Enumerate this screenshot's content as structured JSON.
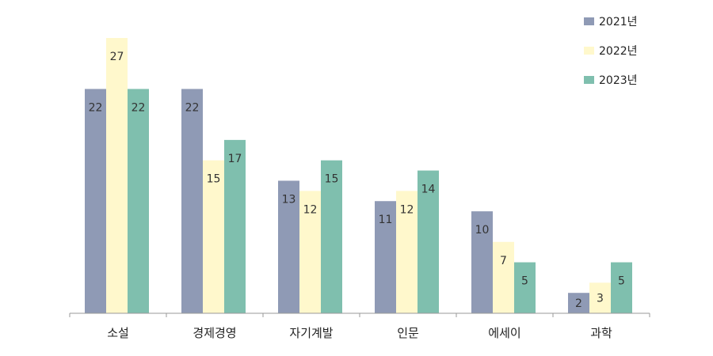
{
  "chart_data": {
    "type": "bar",
    "categories": [
      "소설",
      "경제경영",
      "자기계발",
      "인문",
      "에세이",
      "과학"
    ],
    "series": [
      {
        "name": "2021년",
        "color": "#8f9ab5",
        "values": [
          22,
          22,
          13,
          11,
          10,
          2
        ]
      },
      {
        "name": "2022년",
        "color": "#fff8cc",
        "values": [
          27,
          15,
          12,
          12,
          7,
          3
        ]
      },
      {
        "name": "2023년",
        "color": "#7fbfae",
        "values": [
          22,
          17,
          15,
          14,
          5,
          5
        ]
      }
    ],
    "ylim": [
      0,
      27
    ],
    "title": "",
    "xlabel": "",
    "ylabel": "",
    "grid": false,
    "legend_position": "top-right",
    "data_labels": true
  }
}
